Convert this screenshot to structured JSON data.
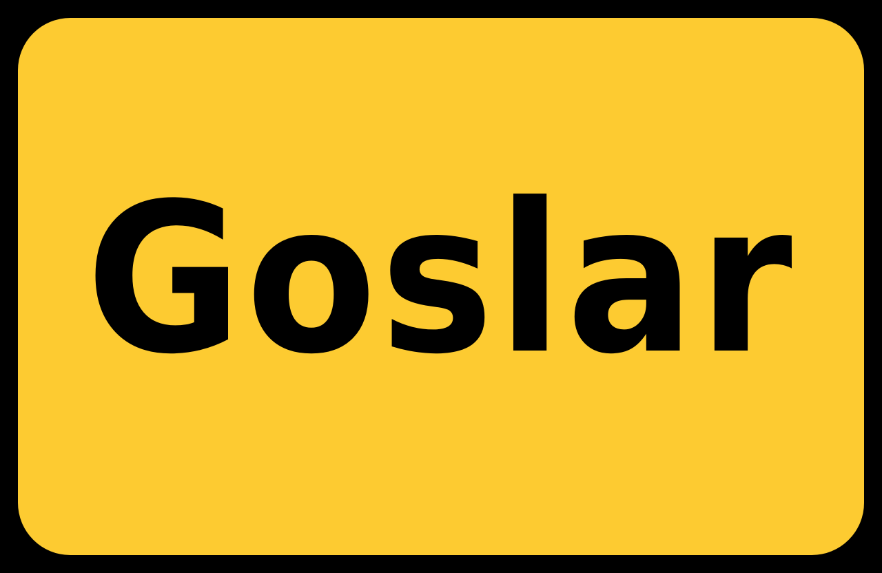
{
  "sign": {
    "town_name": "Goslar",
    "colors": {
      "face": "#fdcb31",
      "border": "#000000",
      "text": "#000000"
    }
  }
}
